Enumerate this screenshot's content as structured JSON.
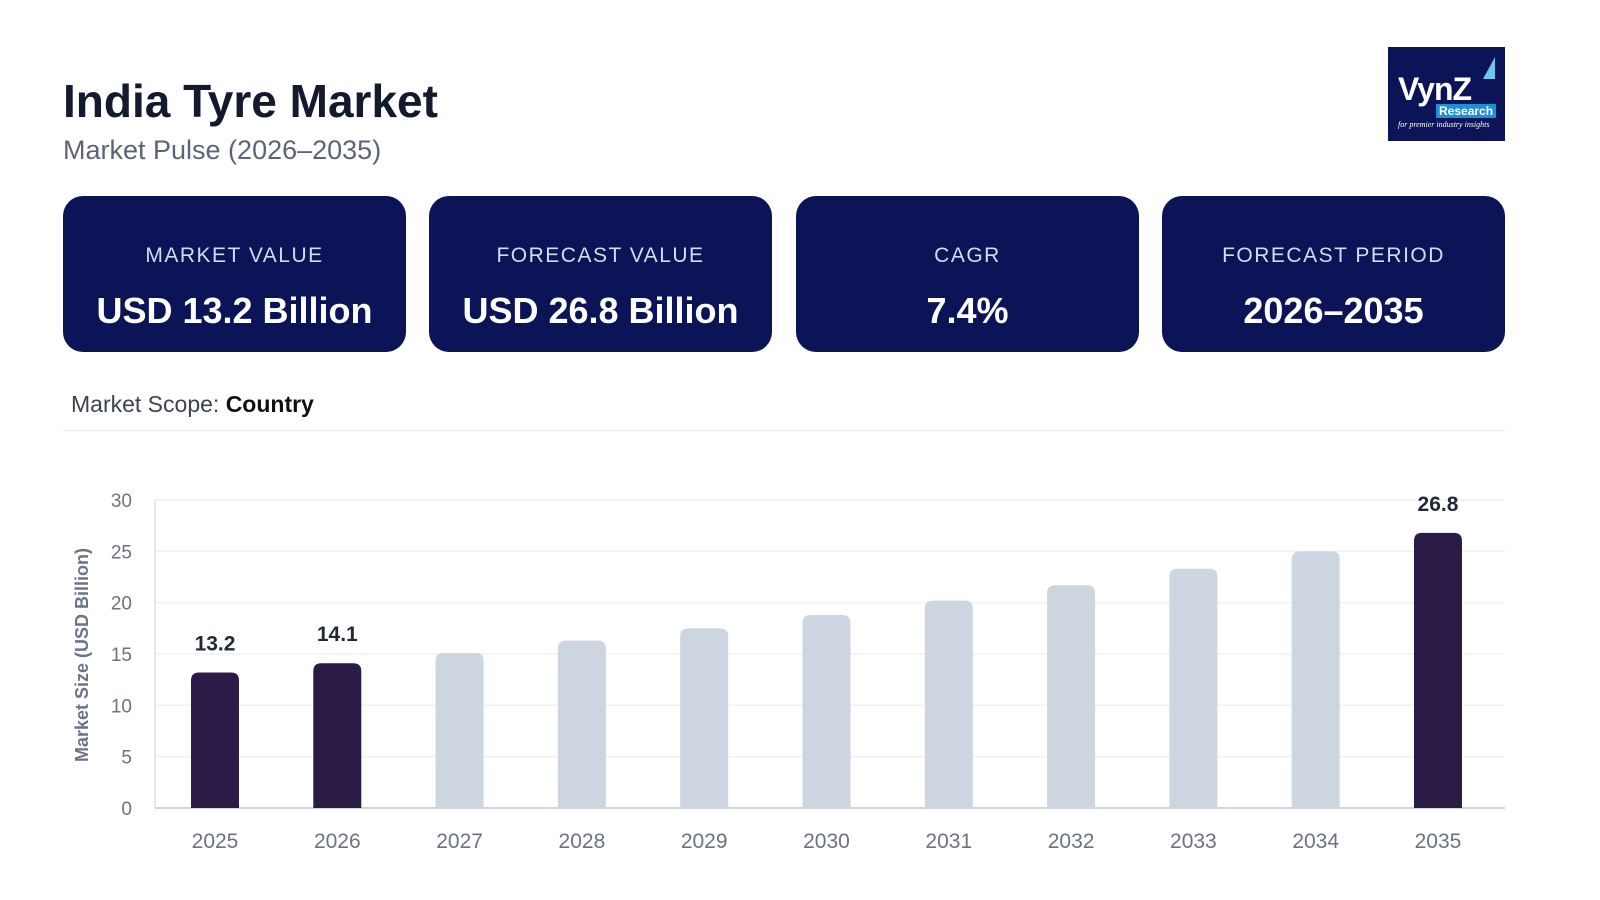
{
  "header": {
    "title": "India Tyre Market",
    "subtitle": "Market Pulse (2026–2035)"
  },
  "logo": {
    "text": "VynZ",
    "sub": "Research",
    "tagline": "for premier industry insights"
  },
  "cards": [
    {
      "label": "MARKET VALUE",
      "value": "USD 13.2 Billion"
    },
    {
      "label": "FORECAST VALUE",
      "value": "USD 26.8 Billion"
    },
    {
      "label": "CAGR",
      "value": "7.4%"
    },
    {
      "label": "FORECAST PERIOD",
      "value": "2026–2035"
    }
  ],
  "scope": {
    "label": "Market Scope:",
    "value": "Country"
  },
  "colors": {
    "highlight": "#2b1b47",
    "forecast": "#cdd5e0",
    "card": "#0b1456"
  },
  "chart_data": {
    "type": "bar",
    "ylabel": "Market Size (USD Billion)",
    "xlabel": "",
    "ylim": [
      0,
      30
    ],
    "yticks": [
      0,
      5,
      10,
      15,
      20,
      25,
      30
    ],
    "grid": true,
    "categories": [
      "2025",
      "2026",
      "2027",
      "2028",
      "2029",
      "2030",
      "2031",
      "2032",
      "2033",
      "2034",
      "2035"
    ],
    "values": [
      13.2,
      14.1,
      15.1,
      16.3,
      17.5,
      18.8,
      20.2,
      21.7,
      23.3,
      25.0,
      26.8
    ],
    "highlighted": [
      true,
      true,
      false,
      false,
      false,
      false,
      false,
      false,
      false,
      false,
      true
    ],
    "data_labels": {
      "2025": "13.2",
      "2026": "14.1",
      "2035": "26.8"
    }
  }
}
